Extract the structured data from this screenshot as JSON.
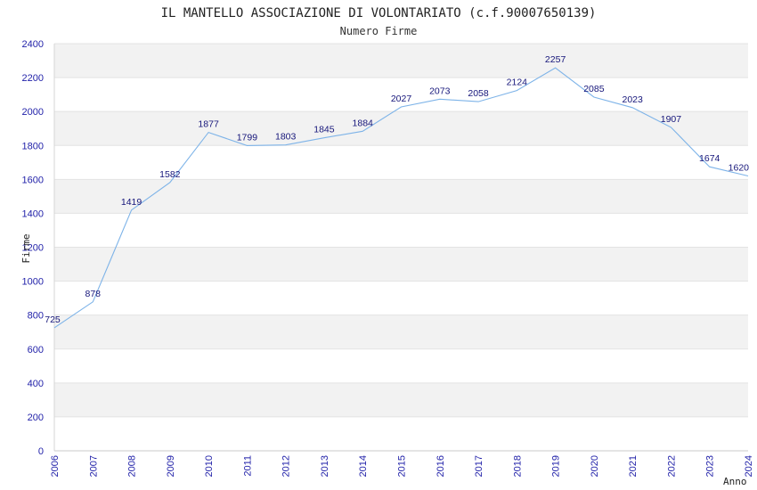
{
  "chart_data": {
    "type": "line",
    "title": "IL MANTELLO ASSOCIAZIONE DI VOLONTARIATO (c.f.90007650139)",
    "subtitle": "Numero Firme",
    "xlabel": "Anno",
    "ylabel": "Firme",
    "categories": [
      "2006",
      "2007",
      "2008",
      "2009",
      "2010",
      "2011",
      "2012",
      "2013",
      "2014",
      "2015",
      "2016",
      "2017",
      "2018",
      "2019",
      "2020",
      "2021",
      "2022",
      "2023",
      "2024"
    ],
    "values": [
      725,
      878,
      1419,
      1582,
      1877,
      1799,
      1803,
      1845,
      1884,
      2027,
      2073,
      2058,
      2124,
      2257,
      2085,
      2023,
      1907,
      1674,
      1620
    ],
    "ylim": [
      0,
      2400
    ],
    "yticks": [
      0,
      200,
      400,
      600,
      800,
      1000,
      1200,
      1400,
      1600,
      1800,
      2000,
      2200,
      2400
    ],
    "grid": "horizontal alternating bands",
    "colors": {
      "line": "#7db3e8",
      "band": "#f2f2f2",
      "tick": "#1f1fa8",
      "label": "#15157a"
    }
  }
}
